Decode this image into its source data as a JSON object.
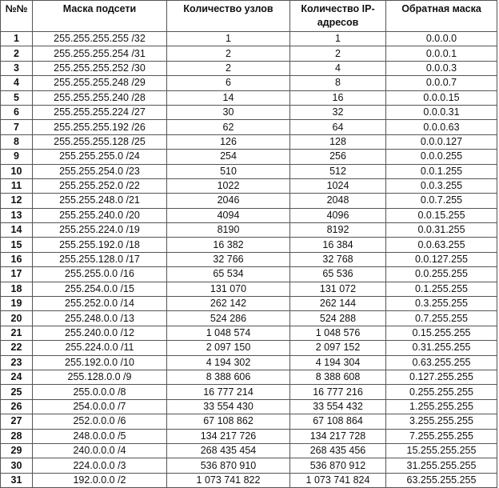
{
  "table": {
    "header": [
      "№№",
      "Маска подсети",
      "Количество узлов",
      "Количество IP-адресов",
      "Обратная маска"
    ],
    "rows": [
      [
        "1",
        "255.255.255.255 /32",
        "1",
        "1",
        "0.0.0.0"
      ],
      [
        "2",
        "255.255.255.254 /31",
        "2",
        "2",
        "0.0.0.1"
      ],
      [
        "3",
        "255.255.255.252 /30",
        "2",
        "4",
        "0.0.0.3"
      ],
      [
        "4",
        "255.255.255.248 /29",
        "6",
        "8",
        "0.0.0.7"
      ],
      [
        "5",
        "255.255.255.240 /28",
        "14",
        "16",
        "0.0.0.15"
      ],
      [
        "6",
        "255.255.255.224 /27",
        "30",
        "32",
        "0.0.0.31"
      ],
      [
        "7",
        "255.255.255.192 /26",
        "62",
        "64",
        "0.0.0.63"
      ],
      [
        "8",
        "255.255.255.128 /25",
        "126",
        "128",
        "0.0.0.127"
      ],
      [
        "9",
        "255.255.255.0 /24",
        "254",
        "256",
        "0.0.0.255"
      ],
      [
        "10",
        "255.255.254.0 /23",
        "510",
        "512",
        "0.0.1.255"
      ],
      [
        "11",
        "255.255.252.0 /22",
        "1022",
        "1024",
        "0.0.3.255"
      ],
      [
        "12",
        "255.255.248.0 /21",
        "2046",
        "2048",
        "0.0.7.255"
      ],
      [
        "13",
        "255.255.240.0 /20",
        "4094",
        "4096",
        "0.0.15.255"
      ],
      [
        "14",
        "255.255.224.0 /19",
        "8190",
        "8192",
        "0.0.31.255"
      ],
      [
        "15",
        "255.255.192.0 /18",
        "16 382",
        "16 384",
        "0.0.63.255"
      ],
      [
        "16",
        "255.255.128.0 /17",
        "32 766",
        "32 768",
        "0.0.127.255"
      ],
      [
        "17",
        "255.255.0.0 /16",
        "65 534",
        "65 536",
        "0.0.255.255"
      ],
      [
        "18",
        "255.254.0.0 /15",
        "131 070",
        "131 072",
        "0.1.255.255"
      ],
      [
        "19",
        "255.252.0.0 /14",
        "262 142",
        "262 144",
        "0.3.255.255"
      ],
      [
        "20",
        "255.248.0.0 /13",
        "524 286",
        "524 288",
        "0.7.255.255"
      ],
      [
        "21",
        "255.240.0.0 /12",
        "1 048 574",
        "1 048 576",
        "0.15.255.255"
      ],
      [
        "22",
        "255.224.0.0 /11",
        "2 097 150",
        "2 097 152",
        "0.31.255.255"
      ],
      [
        "23",
        "255.192.0.0 /10",
        "4 194 302",
        "4 194 304",
        "0.63.255.255"
      ],
      [
        "24",
        "255.128.0.0 /9",
        "8 388 606",
        "8 388 608",
        "0.127.255.255"
      ],
      [
        "25",
        "255.0.0.0 /8",
        "16 777 214",
        "16 777 216",
        "0.255.255.255"
      ],
      [
        "26",
        "254.0.0.0 /7",
        "33 554 430",
        "33 554 432",
        "1.255.255.255"
      ],
      [
        "27",
        "252.0.0.0 /6",
        "67 108 862",
        "67 108 864",
        "3.255.255.255"
      ],
      [
        "28",
        "248.0.0.0 /5",
        "134 217 726",
        "134 217 728",
        "7.255.255.255"
      ],
      [
        "29",
        "240.0.0.0 /4",
        "268 435 454",
        "268 435 456",
        "15.255.255.255"
      ],
      [
        "30",
        "224.0.0.0 /3",
        "536 870 910",
        "536 870 912",
        "31.255.255.255"
      ],
      [
        "31",
        "192.0.0.0 /2",
        "1 073 741 822",
        "1 073 741 824",
        "63.255.255.255"
      ]
    ]
  }
}
